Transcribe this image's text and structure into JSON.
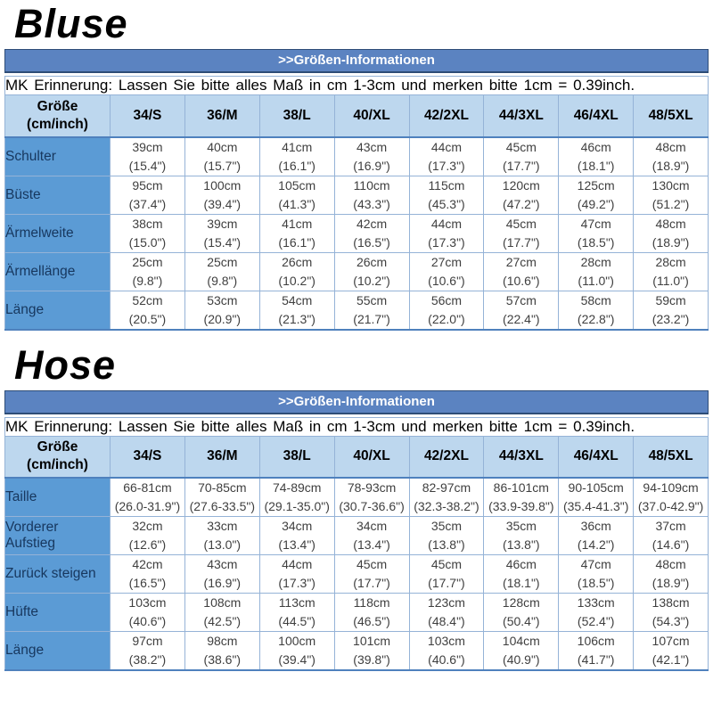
{
  "colors": {
    "banner_bg": "#5b83c1",
    "banner_border": "#2e4d77",
    "banner_text": "#ffffff",
    "header_bg": "#bdd7ee",
    "label_bg": "#5b9bd5",
    "label_text": "#17375e",
    "grid_border": "#95b3d7",
    "outer_border": "#4f81bd",
    "cell_text": "#3f3f3f"
  },
  "sections": [
    {
      "title": "Bluse",
      "banner": ">>Größen-Informationen",
      "note": "MK Erinnerung: Lassen Sie bitte alles Maß in cm 1-3cm und merken bitte 1cm = 0.39inch.",
      "size_header": [
        "Größe",
        "(cm/inch)"
      ],
      "sizes": [
        "34/S",
        "36/M",
        "38/L",
        "40/XL",
        "42/2XL",
        "44/3XL",
        "46/4XL",
        "48/5XL"
      ],
      "rows": [
        {
          "label": "Schulter",
          "cm": [
            "39cm",
            "40cm",
            "41cm",
            "43cm",
            "44cm",
            "45cm",
            "46cm",
            "48cm"
          ],
          "inch": [
            "(15.4\")",
            "(15.7\")",
            "(16.1\")",
            "(16.9\")",
            "(17.3\")",
            "(17.7\")",
            "(18.1\")",
            "(18.9\")"
          ]
        },
        {
          "label": "Büste",
          "cm": [
            "95cm",
            "100cm",
            "105cm",
            "110cm",
            "115cm",
            "120cm",
            "125cm",
            "130cm"
          ],
          "inch": [
            "(37.4\")",
            "(39.4\")",
            "(41.3\")",
            "(43.3\")",
            "(45.3\")",
            "(47.2\")",
            "(49.2\")",
            "(51.2\")"
          ]
        },
        {
          "label": "Ärmelweite",
          "cm": [
            "38cm",
            "39cm",
            "41cm",
            "42cm",
            "44cm",
            "45cm",
            "47cm",
            "48cm"
          ],
          "inch": [
            "(15.0\")",
            "(15.4\")",
            "(16.1\")",
            "(16.5\")",
            "(17.3\")",
            "(17.7\")",
            "(18.5\")",
            "(18.9\")"
          ]
        },
        {
          "label": "Ärmellänge",
          "cm": [
            "25cm",
            "25cm",
            "26cm",
            "26cm",
            "27cm",
            "27cm",
            "28cm",
            "28cm"
          ],
          "inch": [
            "(9.8\")",
            "(9.8\")",
            "(10.2\")",
            "(10.2\")",
            "(10.6\")",
            "(10.6\")",
            "(11.0\")",
            "(11.0\")"
          ]
        },
        {
          "label": "Länge",
          "cm": [
            "52cm",
            "53cm",
            "54cm",
            "55cm",
            "56cm",
            "57cm",
            "58cm",
            "59cm"
          ],
          "inch": [
            "(20.5\")",
            "(20.9\")",
            "(21.3\")",
            "(21.7\")",
            "(22.0\")",
            "(22.4\")",
            "(22.8\")",
            "(23.2\")"
          ]
        }
      ]
    },
    {
      "title": "Hose",
      "banner": ">>Größen-Informationen",
      "note": "MK Erinnerung: Lassen Sie bitte alles Maß in cm 1-3cm und merken bitte 1cm = 0.39inch.",
      "size_header": [
        "Größe",
        "(cm/inch)"
      ],
      "sizes": [
        "34/S",
        "36/M",
        "38/L",
        "40/XL",
        "42/2XL",
        "44/3XL",
        "46/4XL",
        "48/5XL"
      ],
      "rows": [
        {
          "label": "Taille",
          "cm": [
            "66-81cm",
            "70-85cm",
            "74-89cm",
            "78-93cm",
            "82-97cm",
            "86-101cm",
            "90-105cm",
            "94-109cm"
          ],
          "inch": [
            "(26.0-31.9\")",
            "(27.6-33.5\")",
            "(29.1-35.0\")",
            "(30.7-36.6\")",
            "(32.3-38.2\")",
            "(33.9-39.8\")",
            "(35.4-41.3\")",
            "(37.0-42.9\")"
          ]
        },
        {
          "label": "Vorderer Aufstieg",
          "cm": [
            "32cm",
            "33cm",
            "34cm",
            "34cm",
            "35cm",
            "35cm",
            "36cm",
            "37cm"
          ],
          "inch": [
            "(12.6\")",
            "(13.0\")",
            "(13.4\")",
            "(13.4\")",
            "(13.8\")",
            "(13.8\")",
            "(14.2\")",
            "(14.6\")"
          ]
        },
        {
          "label": "Zurück steigen",
          "cm": [
            "42cm",
            "43cm",
            "44cm",
            "45cm",
            "45cm",
            "46cm",
            "47cm",
            "48cm"
          ],
          "inch": [
            "(16.5\")",
            "(16.9\")",
            "(17.3\")",
            "(17.7\")",
            "(17.7\")",
            "(18.1\")",
            "(18.5\")",
            "(18.9\")"
          ]
        },
        {
          "label": "Hüfte",
          "cm": [
            "103cm",
            "108cm",
            "113cm",
            "118cm",
            "123cm",
            "128cm",
            "133cm",
            "138cm"
          ],
          "inch": [
            "(40.6\")",
            "(42.5\")",
            "(44.5\")",
            "(46.5\")",
            "(48.4\")",
            "(50.4\")",
            "(52.4\")",
            "(54.3\")"
          ]
        },
        {
          "label": "Länge",
          "cm": [
            "97cm",
            "98cm",
            "100cm",
            "101cm",
            "103cm",
            "104cm",
            "106cm",
            "107cm"
          ],
          "inch": [
            "(38.2\")",
            "(38.6\")",
            "(39.4\")",
            "(39.8\")",
            "(40.6\")",
            "(40.9\")",
            "(41.7\")",
            "(42.1\")"
          ]
        }
      ]
    }
  ]
}
